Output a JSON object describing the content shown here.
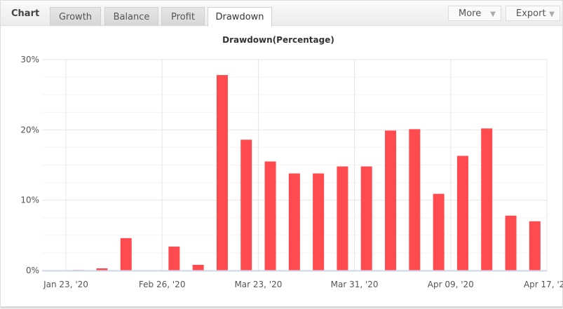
{
  "header": {
    "brand": "Chart",
    "tabs": [
      "Growth",
      "Balance",
      "Profit",
      "Drawdown"
    ],
    "active_tab": "Drawdown",
    "more_label": "More",
    "export_label": "Export"
  },
  "colors": {
    "bar": "#ff4a4f",
    "grid": "#ececec"
  },
  "chart_data": {
    "type": "bar",
    "title": "Drawdown(Percentage)",
    "values": [
      0.1,
      0.3,
      4.6,
      0,
      3.4,
      0.8,
      27.8,
      18.6,
      15.5,
      13.8,
      13.8,
      14.8,
      14.8,
      19.9,
      20.1,
      10.9,
      16.3,
      20.2,
      7.8,
      7.0
    ],
    "y_ticks": [
      "0%",
      "10%",
      "20%",
      "30%"
    ],
    "ylim": [
      0,
      30
    ],
    "x_ticks": [
      "Jan 23, '20",
      "Feb 26, '20",
      "Mar 23, '20",
      "Mar 31, '20",
      "Apr 09, '20",
      "Apr 17, '20"
    ],
    "grid": true,
    "legend": "none"
  }
}
